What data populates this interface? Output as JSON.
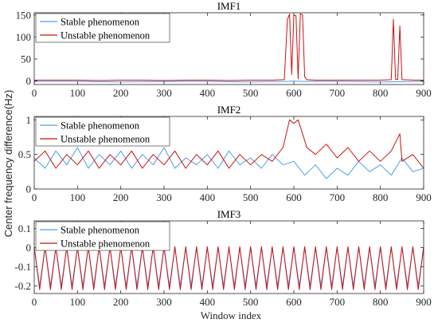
{
  "figure": {
    "ylabel": "Center frequency difference(Hz)",
    "xlabel": "Window index"
  },
  "colors": {
    "stable": "#4c9ee6",
    "unstable": "#cc1111",
    "axis": "#262626"
  },
  "chart_data": [
    {
      "type": "line",
      "title": "IMF1",
      "xlabel": "",
      "ylabel": "",
      "xlim": [
        0,
        900
      ],
      "ylim": [
        -8,
        155
      ],
      "xticks": [
        0,
        100,
        200,
        300,
        400,
        500,
        600,
        700,
        800,
        900
      ],
      "yticks": [
        0,
        50,
        100,
        150
      ],
      "legend_position": "top-left",
      "grid": false,
      "series": [
        {
          "name": "Stable phenomenon",
          "x": [
            0,
            100,
            200,
            300,
            400,
            500,
            580,
            600,
            620,
            700,
            800,
            900
          ],
          "values": [
            -1,
            -1,
            -2,
            -1,
            -1,
            -2,
            -1,
            0,
            -1,
            -1,
            -2,
            -1
          ]
        },
        {
          "name": "Unstable phenomenon",
          "x": [
            0,
            50,
            100,
            150,
            200,
            250,
            300,
            350,
            400,
            450,
            500,
            550,
            578,
            585,
            590,
            595,
            600,
            605,
            610,
            615,
            620,
            625,
            630,
            650,
            700,
            750,
            800,
            825,
            830,
            835,
            840,
            845,
            850,
            880,
            900
          ],
          "values": [
            2,
            2,
            2,
            1,
            2,
            2,
            1,
            2,
            2,
            1,
            2,
            2,
            3,
            140,
            152,
            15,
            150,
            148,
            5,
            153,
            150,
            10,
            3,
            2,
            2,
            2,
            2,
            3,
            140,
            4,
            3,
            125,
            3,
            2,
            2
          ]
        }
      ]
    },
    {
      "type": "line",
      "title": "IMF2",
      "xlabel": "",
      "ylabel": "",
      "xlim": [
        0,
        900
      ],
      "ylim": [
        0,
        1.05
      ],
      "xticks": [
        0,
        100,
        200,
        300,
        400,
        500,
        600,
        700,
        800,
        900
      ],
      "yticks": [
        0,
        0.5,
        1
      ],
      "legend_position": "top-left",
      "grid": false,
      "series": [
        {
          "name": "Stable phenomenon",
          "x": [
            0,
            25,
            50,
            75,
            100,
            125,
            150,
            175,
            200,
            225,
            250,
            275,
            300,
            325,
            350,
            375,
            400,
            425,
            450,
            475,
            500,
            525,
            550,
            575,
            600,
            625,
            650,
            675,
            700,
            725,
            750,
            775,
            800,
            825,
            850,
            875,
            900
          ],
          "values": [
            0.45,
            0.3,
            0.55,
            0.35,
            0.6,
            0.3,
            0.5,
            0.35,
            0.55,
            0.3,
            0.5,
            0.35,
            0.6,
            0.3,
            0.45,
            0.35,
            0.5,
            0.3,
            0.55,
            0.35,
            0.45,
            0.3,
            0.5,
            0.35,
            0.4,
            0.2,
            0.35,
            0.15,
            0.3,
            0.2,
            0.4,
            0.25,
            0.35,
            0.2,
            0.45,
            0.25,
            0.3
          ]
        },
        {
          "name": "Unstable phenomenon",
          "x": [
            0,
            25,
            50,
            75,
            100,
            125,
            150,
            175,
            200,
            225,
            250,
            275,
            300,
            325,
            350,
            375,
            400,
            425,
            450,
            475,
            500,
            525,
            550,
            575,
            590,
            600,
            610,
            620,
            630,
            650,
            675,
            700,
            725,
            750,
            775,
            800,
            825,
            845,
            850,
            875,
            900
          ],
          "values": [
            0.4,
            0.55,
            0.3,
            0.5,
            0.35,
            0.55,
            0.3,
            0.5,
            0.35,
            0.55,
            0.3,
            0.5,
            0.35,
            0.55,
            0.3,
            0.5,
            0.35,
            0.55,
            0.3,
            0.5,
            0.35,
            0.5,
            0.4,
            0.6,
            1.0,
            0.95,
            1.0,
            0.8,
            0.6,
            0.5,
            0.65,
            0.45,
            0.6,
            0.4,
            0.55,
            0.4,
            0.55,
            0.8,
            0.4,
            0.5,
            0.3
          ]
        }
      ]
    },
    {
      "type": "line",
      "title": "IMF3",
      "xlabel": "Window index",
      "ylabel": "",
      "xlim": [
        0,
        900
      ],
      "ylim": [
        -0.24,
        0.14
      ],
      "xticks": [
        0,
        100,
        200,
        300,
        400,
        500,
        600,
        700,
        800,
        900
      ],
      "yticks": [
        -0.2,
        -0.1,
        0,
        0.1
      ],
      "legend_position": "top-left",
      "grid": false,
      "series": [
        {
          "name": "Stable phenomenon",
          "x": [
            0,
            12.5,
            25,
            37.5,
            50,
            62.5,
            75,
            87.5,
            100,
            112.5,
            125,
            137.5,
            150,
            162.5,
            175,
            187.5,
            200,
            212.5,
            225,
            237.5,
            250,
            262.5,
            275,
            287.5,
            300,
            312.5,
            325,
            337.5,
            350,
            362.5,
            375,
            387.5,
            400,
            412.5,
            425,
            437.5,
            450,
            462.5,
            475,
            487.5,
            500,
            512.5,
            525,
            537.5,
            550,
            562.5,
            575,
            587.5,
            600,
            612.5,
            625,
            637.5,
            650,
            662.5,
            675,
            687.5,
            700,
            712.5,
            725,
            737.5,
            750,
            762.5,
            775,
            787.5,
            800,
            812.5,
            825,
            837.5,
            850,
            862.5,
            875,
            887.5,
            900
          ],
          "values": [
            0,
            -0.2,
            0,
            -0.2,
            0,
            -0.2,
            0,
            -0.2,
            0,
            -0.2,
            0,
            -0.2,
            0,
            -0.2,
            0,
            -0.2,
            0,
            -0.2,
            0,
            -0.2,
            0,
            -0.2,
            0,
            -0.2,
            0,
            -0.2,
            0,
            -0.2,
            0,
            -0.2,
            0,
            -0.2,
            0,
            -0.2,
            0,
            -0.2,
            0,
            -0.2,
            0,
            -0.2,
            0,
            -0.2,
            0,
            -0.2,
            0,
            -0.2,
            0,
            -0.2,
            0,
            -0.2,
            0,
            -0.2,
            0,
            -0.2,
            0,
            -0.2,
            0,
            -0.2,
            0,
            -0.2,
            0,
            -0.2,
            0,
            -0.2,
            0,
            -0.2,
            0,
            -0.2,
            0,
            -0.2,
            0,
            -0.2,
            0
          ]
        },
        {
          "name": "Unstable phenomenon",
          "x": [
            0,
            12.5,
            25,
            37.5,
            50,
            62.5,
            75,
            87.5,
            100,
            112.5,
            125,
            137.5,
            150,
            162.5,
            175,
            187.5,
            200,
            212.5,
            225,
            237.5,
            250,
            262.5,
            275,
            287.5,
            300,
            312.5,
            325,
            337.5,
            350,
            362.5,
            375,
            387.5,
            400,
            412.5,
            425,
            437.5,
            450,
            462.5,
            475,
            487.5,
            500,
            512.5,
            525,
            537.5,
            550,
            562.5,
            575,
            587.5,
            600,
            612.5,
            625,
            637.5,
            650,
            662.5,
            675,
            687.5,
            700,
            712.5,
            725,
            737.5,
            750,
            762.5,
            775,
            787.5,
            800,
            812.5,
            825,
            837.5,
            850,
            862.5,
            875,
            887.5,
            900
          ],
          "values": [
            0.005,
            -0.22,
            0.005,
            -0.22,
            0.005,
            -0.22,
            0.005,
            -0.22,
            0.005,
            -0.22,
            0.005,
            -0.22,
            0.005,
            -0.22,
            0.005,
            -0.22,
            0.005,
            -0.22,
            0.005,
            -0.22,
            0.005,
            -0.22,
            0.005,
            -0.22,
            0.005,
            -0.22,
            0.005,
            -0.22,
            0.005,
            -0.22,
            0.005,
            -0.22,
            0.005,
            -0.22,
            0.005,
            -0.22,
            0.005,
            -0.22,
            0.005,
            -0.22,
            0.005,
            -0.22,
            0.005,
            -0.22,
            0.005,
            -0.22,
            0.005,
            -0.22,
            0.005,
            -0.22,
            0.005,
            -0.22,
            0.005,
            -0.22,
            0.005,
            -0.22,
            0.005,
            -0.22,
            0.005,
            -0.22,
            0.005,
            -0.22,
            0.005,
            -0.22,
            0.005,
            -0.22,
            0.005,
            -0.22,
            0.005,
            -0.22,
            0.005,
            -0.22,
            0.005
          ]
        }
      ]
    }
  ]
}
